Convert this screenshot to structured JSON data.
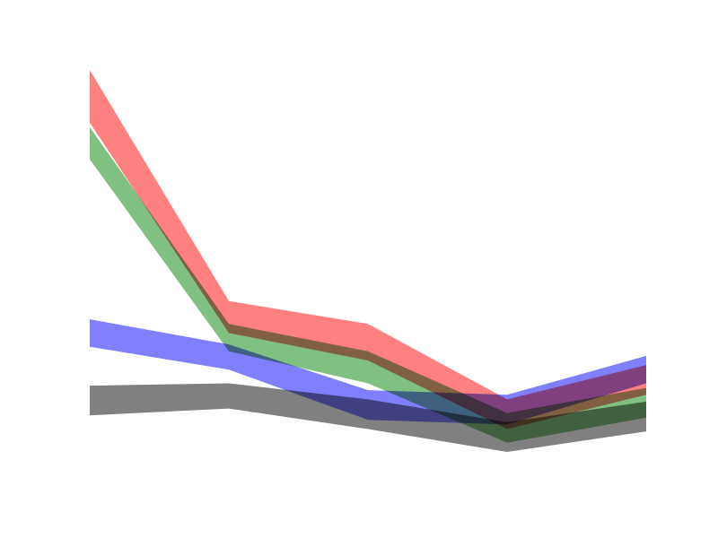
{
  "chart_data": {
    "type": "area",
    "x": [
      0,
      1,
      2,
      3,
      4
    ],
    "xlim": [
      0,
      4
    ],
    "ylim": [
      0,
      1
    ],
    "grid": false,
    "series": [
      {
        "lower": [
          0.18,
          0.195,
          0.15,
          0.1,
          0.145
        ],
        "upper": [
          0.245,
          0.25,
          0.215,
          0.165,
          0.21
        ],
        "color": "#808080"
      },
      {
        "lower": [
          0.33,
          0.28,
          0.17,
          0.16,
          0.25
        ],
        "upper": [
          0.39,
          0.335,
          0.235,
          0.225,
          0.31
        ],
        "color": "#8080ff"
      },
      {
        "lower": [
          0.74,
          0.32,
          0.25,
          0.12,
          0.175
        ],
        "upper": [
          0.81,
          0.38,
          0.32,
          0.185,
          0.24
        ],
        "color": "#80c080"
      },
      {
        "lower": [
          0.82,
          0.36,
          0.3,
          0.15,
          0.225
        ],
        "upper": [
          0.935,
          0.43,
          0.38,
          0.215,
          0.29
        ],
        "color": "#ff8080"
      }
    ]
  }
}
